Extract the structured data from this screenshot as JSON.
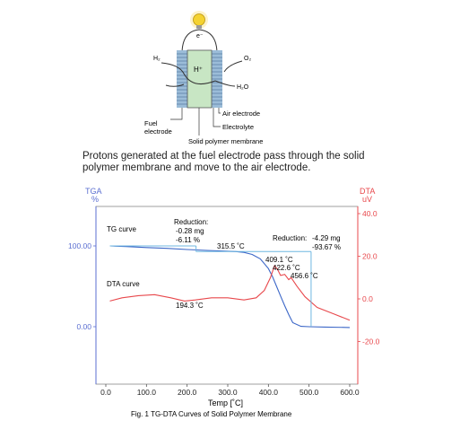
{
  "diagram": {
    "electron_label": "e⁻",
    "h2_label": "H₂",
    "o2_label": "O₂",
    "proton_label": "H⁺",
    "water_label": "H₂O",
    "air_electrode": "Air electrode",
    "fuel_electrode_1": "Fuel",
    "fuel_electrode_2": "electrode",
    "electrolyte": "Electrolyte",
    "membrane": "Solid polymer membrane",
    "colors": {
      "membrane_fill": "#c8e6c4",
      "electrode_fill": "#9bbcd8",
      "bulb": "#f4d230"
    }
  },
  "caption": {
    "line1": "Protons generated at the fuel electrode pass through the solid",
    "line2": "polymer membrane and move to the air electrode."
  },
  "chart_data": {
    "type": "line",
    "title": "Fig. 1 TG-DTA Curves of Solid Polymer Membrane",
    "xlabel": "Temp [˚C]",
    "xlim": [
      0,
      600
    ],
    "x_ticks": [
      "0.0",
      "100.0",
      "200.0",
      "300.0",
      "400.0",
      "500.0",
      "600.0"
    ],
    "left_axis": {
      "label_top": "TGA",
      "label_unit": "%",
      "ticks": [
        "100.00",
        "0.00"
      ],
      "color": "#5b6fd1"
    },
    "right_axis": {
      "label_top": "DTA",
      "label_unit": "uV",
      "ticks": [
        "40.0",
        "20.0",
        "0.0",
        "-20.0"
      ],
      "ylim": [
        -40,
        40
      ],
      "color": "#e8484c"
    },
    "series": [
      {
        "name": "TG curve",
        "axis": "left",
        "color": "#3b66c7",
        "x": [
          10,
          50,
          100,
          150,
          200,
          250,
          300,
          320,
          340,
          360,
          380,
          400,
          410,
          420,
          430,
          440,
          450,
          460,
          480,
          500,
          540,
          600
        ],
        "y": [
          100.0,
          99.2,
          98.0,
          97.0,
          95.6,
          94.4,
          93.4,
          93.0,
          92.0,
          89.5,
          84.0,
          72.0,
          62.0,
          50.0,
          38.0,
          26.0,
          15.0,
          5.0,
          0.5,
          0.0,
          -0.5,
          -1.0
        ]
      },
      {
        "name": "DTA curve",
        "axis": "right",
        "color": "#e8484c",
        "x": [
          10,
          40,
          80,
          120,
          160,
          194,
          220,
          260,
          300,
          340,
          370,
          390,
          405,
          415,
          422,
          430,
          440,
          450,
          456,
          470,
          490,
          520,
          560,
          600
        ],
        "y": [
          -1.0,
          0.5,
          1.5,
          2.0,
          0.5,
          -1.0,
          -0.5,
          0.5,
          0.5,
          -0.5,
          0.5,
          4.0,
          10.0,
          15.5,
          14.0,
          11.0,
          11.5,
          9.0,
          10.0,
          6.0,
          1.0,
          -4.0,
          -7.0,
          -10.0
        ]
      }
    ],
    "step_lines": [
      {
        "name": "reduction-1",
        "x": 222,
        "from_y": 100.0,
        "to_y": 93.0
      },
      {
        "name": "reduction-2",
        "x": 505,
        "from_y": 93.0,
        "to_y": 0.0
      }
    ],
    "annotations": {
      "tg_curve": "TG curve",
      "dta_curve": "DTA curve",
      "reduction1_title": "Reduction:",
      "reduction1_mg": "-0.28 mg",
      "reduction1_pct": "-6.11 %",
      "reduction2_title": "Reduction:",
      "reduction2_mg": "-4.29 mg",
      "reduction2_pct": "-93.67 %",
      "peak_315": "315.5 ˚C",
      "peak_409": "409.1 ˚C",
      "peak_422": "422.6 ˚C",
      "peak_456": "456.6 ˚C",
      "peak_194": "194.3 ˚C"
    }
  }
}
